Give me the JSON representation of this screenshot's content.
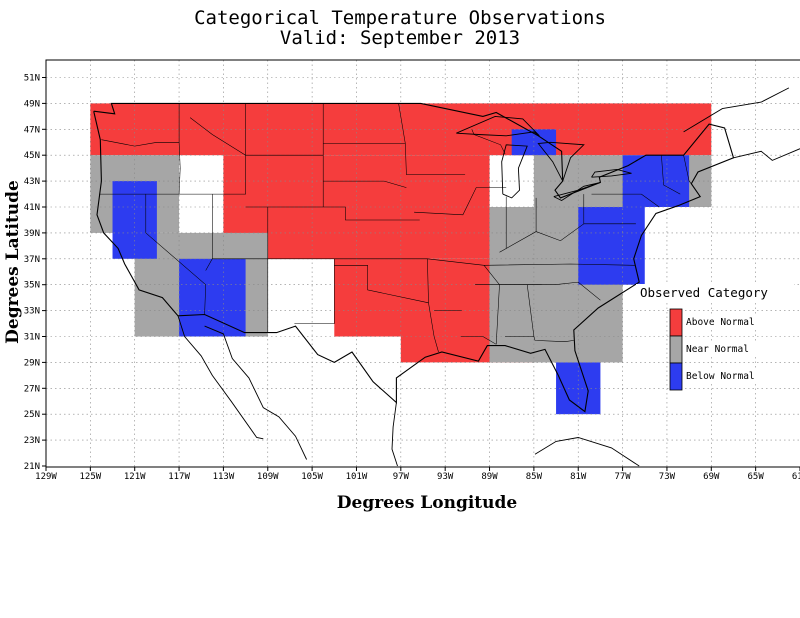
{
  "title": "Categorical Temperature Observations",
  "subtitle": "Valid: September 2013",
  "x_axis_label": "Degrees Longitude",
  "y_axis_label": "Degrees Latitude",
  "x_ticks": [
    "129W",
    "125W",
    "121W",
    "117W",
    "113W",
    "109W",
    "105W",
    "101W",
    "97W",
    "93W",
    "89W",
    "85W",
    "81W",
    "77W",
    "73W",
    "69W",
    "65W",
    "61W"
  ],
  "y_ticks": [
    "51N",
    "49N",
    "47N",
    "45N",
    "43N",
    "41N",
    "39N",
    "37N",
    "35N",
    "33N",
    "31N",
    "29N",
    "27N",
    "25N",
    "23N",
    "21N"
  ],
  "legend": {
    "title": "Observed Category",
    "items": [
      {
        "label": "Above Normal",
        "color": "#f53d3d"
      },
      {
        "label": "Near Normal",
        "color": "#a6a6a6"
      },
      {
        "label": "Below Normal",
        "color": "#2d3cf0"
      }
    ]
  },
  "map_data": {
    "lon_range": [
      -129,
      -61
    ],
    "lat_range": [
      21,
      52
    ],
    "cell_size_deg": 2,
    "regions": [
      {
        "category": "above",
        "lon": [
          -125,
          -69
        ],
        "lat": [
          45,
          49
        ]
      },
      {
        "category": "above",
        "lon": [
          -113,
          -89
        ],
        "lat": [
          37,
          45
        ]
      },
      {
        "category": "above",
        "lon": [
          -103,
          -89
        ],
        "lat": [
          31,
          37
        ]
      },
      {
        "category": "above",
        "lon": [
          -97,
          -85
        ],
        "lat": [
          29,
          31
        ]
      },
      {
        "category": "near",
        "lon": [
          -125,
          -117
        ],
        "lat": [
          39,
          45
        ]
      },
      {
        "category": "near",
        "lon": [
          -121,
          -109
        ],
        "lat": [
          31,
          39
        ]
      },
      {
        "category": "near",
        "lon": [
          -89,
          -77
        ],
        "lat": [
          29,
          41
        ]
      },
      {
        "category": "near",
        "lon": [
          -85,
          -69
        ],
        "lat": [
          41,
          45
        ]
      },
      {
        "category": "below",
        "lon": [
          -123,
          -119
        ],
        "lat": [
          37,
          43
        ]
      },
      {
        "category": "below",
        "lon": [
          -117,
          -111
        ],
        "lat": [
          31,
          37
        ]
      },
      {
        "category": "below",
        "lon": [
          -81,
          -75
        ],
        "lat": [
          35,
          41
        ]
      },
      {
        "category": "below",
        "lon": [
          -77,
          -71
        ],
        "lat": [
          41,
          45
        ]
      },
      {
        "category": "below",
        "lon": [
          -83,
          -79
        ],
        "lat": [
          25,
          29
        ]
      },
      {
        "category": "below",
        "lon": [
          -87,
          -83
        ],
        "lat": [
          45,
          47
        ]
      }
    ]
  }
}
